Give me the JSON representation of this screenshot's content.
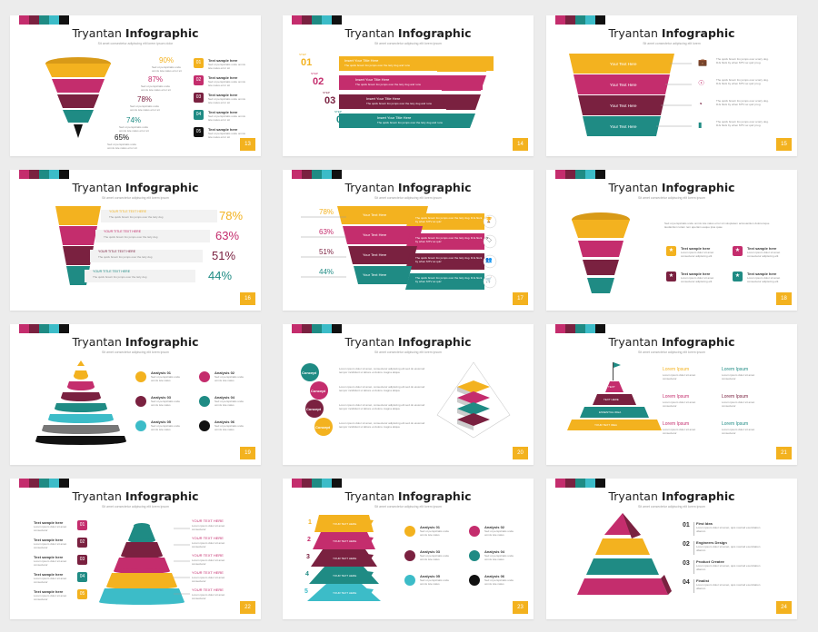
{
  "colors": {
    "yellow": "#f3b21f",
    "pink": "#c42d6d",
    "plum": "#7a2140",
    "teal": "#1f8b84",
    "cyan": "#3cbcc8",
    "black": "#111111",
    "gray": "#dddddd"
  },
  "stripe_colors": [
    "#c42d6d",
    "#7a2140",
    "#1f8b84",
    "#3cbcc8",
    "#111111"
  ],
  "slides": [
    {
      "title_plain": "Tryantan ",
      "title_bold": "Infographic",
      "subtitle": "Sit amet consectetur adipiscing elit lorem ipsum dolor",
      "page": "13",
      "percents": [
        "90%",
        "87%",
        "78%",
        "74%",
        "65%"
      ],
      "steps": [
        "01",
        "02",
        "03",
        "04",
        "05"
      ],
      "step_label": "Text sample here",
      "body": "Sed ut perspiciatis unde omnis iste natus error sit"
    },
    {
      "title_plain": "Tryantan ",
      "title_bold": "Infographic",
      "subtitle": "Sit amet consectetur adipiscing elit lorem ipsum",
      "page": "14",
      "step_word": "STEP",
      "steps": [
        "01",
        "02",
        "03",
        "04"
      ],
      "head": "Insert Your Title Here",
      "body": "The quick brown fox jumps over the lazy dog and runs"
    },
    {
      "title_plain": "Tryantan ",
      "title_bold": "Infographic",
      "subtitle": "Sit amet consectetur adipiscing elit lorem",
      "page": "15",
      "labels": [
        "Your Text Here",
        "Your Text Here",
        "Your Text Here",
        "Your Text Here"
      ],
      "body": "The quick brown fox jumps over a lazy dog. DJs flock by when MTV ax quiz prog."
    },
    {
      "title_plain": "Tryantan ",
      "title_bold": "Infographic",
      "subtitle": "Sit amet consectetur adipiscing elit lorem ipsum",
      "page": "16",
      "labels": [
        "YOUR TITLE TEXT HERE",
        "YOUR TITLE TEXT HERE",
        "YOUR TITLE TEXT HERE",
        "YOUR TITLE TEXT HERE"
      ],
      "percents": [
        "78%",
        "63%",
        "51%",
        "44%"
      ],
      "body": "The quick brown fox jumps over the lazy dog"
    },
    {
      "title_plain": "Tryantan ",
      "title_bold": "Infographic",
      "subtitle": "Sit amet consectetur adipiscing elit lorem ipsum",
      "page": "17",
      "percents": [
        "78%",
        "63%",
        "51%",
        "44%"
      ],
      "labels": [
        "Your Text Here",
        "Your Text Here",
        "Your Text Here",
        "Your Text Here"
      ],
      "body": "The quick brown fox jumps over the lazy dog. DJs flock by when MTV ax quiz"
    },
    {
      "title_plain": "Tryantan ",
      "title_bold": "Infographic",
      "subtitle": "Sit amet consectetur adipiscing elit lorem ipsum",
      "page": "18",
      "intro": "Sed ut perspiciatis unde omnis iste natus error sit voluptatem accusantium doloremque laudantium totam rem aperiam eaque ipsa quae",
      "items": [
        "Text sample here",
        "Text sample here",
        "Text sample here",
        "Text sample here"
      ],
      "body": "Lorem ipsum dolor sit amet consectetur adipiscing elit"
    },
    {
      "title_plain": "Tryantan ",
      "title_bold": "Infographic",
      "subtitle": "Sit amet consectetur adipiscing elit lorem ipsum",
      "page": "19",
      "analyses": [
        "Analysis 01",
        "Analysis 02",
        "Analysis 03",
        "Analysis 04",
        "Analysis 05",
        "Analysis 06"
      ],
      "body": "Sed ut perspiciatis unde omnis iste natus"
    },
    {
      "title_plain": "Tryantan ",
      "title_bold": "Infographic",
      "subtitle": "Sit amet consectetur adipiscing elit lorem ipsum",
      "page": "20",
      "concepts": [
        "Concept",
        "Concept",
        "Concept",
        "Concept"
      ],
      "body": "Lorem ipsum dolor sit amet, consectetur adipiscing elit sed do eiusmod tempor incididunt ut labore et dolore magna aliqua"
    },
    {
      "title_plain": "Tryantan ",
      "title_bold": "Infographic",
      "subtitle": "Sit amet consectetur adipiscing elit lorem ipsum",
      "page": "21",
      "heads": [
        "Lorem Ipsum",
        "Lorem Ipsum",
        "Lorem Ipsum",
        "Lorem Ipsum",
        "Lorem Ipsum",
        "Lorem Ipsum"
      ],
      "levels": [
        "TEXT",
        "TEXT HERE",
        "ESSENTIAL IDEA",
        "YOUR TEXT IDEA"
      ],
      "body": "Lorem ipsum dolor sit amet consectetur"
    },
    {
      "title_plain": "Tryantan ",
      "title_bold": "Infographic",
      "subtitle": "Sit amet consectetur adipiscing elit lorem ipsum",
      "page": "22",
      "left_items": [
        "Text sample here",
        "Text sample here",
        "Text sample here",
        "Text sample here",
        "Text sample here"
      ],
      "steps": [
        "01",
        "02",
        "03",
        "04",
        "05"
      ],
      "right_items": [
        "YOUR TEXT HERE",
        "YOUR TEXT HERE",
        "YOUR TEXT HERE",
        "YOUR TEXT HERE",
        "YOUR TEXT HERE"
      ],
      "body": "Lorem ipsum dolor sit amet consectetur"
    },
    {
      "title_plain": "Tryantan ",
      "title_bold": "Infographic",
      "subtitle": "Sit amet consectetur adipiscing elit lorem ipsum",
      "page": "23",
      "steps": [
        "1",
        "2",
        "3",
        "4",
        "5"
      ],
      "level_label": "YOUR TEXT HERE",
      "analyses": [
        "Analysis 01",
        "Analysis 02",
        "Analysis 03",
        "Analysis 04",
        "Analysis 05",
        "Analysis 06"
      ],
      "body": "Sed ut perspiciatis unde omnis iste natus"
    },
    {
      "title_plain": "Tryantan ",
      "title_bold": "Infographic",
      "subtitle": "Sit amet consectetur adipiscing elit lorem ipsum",
      "page": "24",
      "steps": [
        "01",
        "02",
        "03",
        "04"
      ],
      "heads": [
        "First Idea",
        "Engineers Design",
        "Product Createe",
        "Finalist"
      ],
      "body": "Lorem ipsum dolor sit amet, quis nostrud exercitation ullamco"
    }
  ]
}
